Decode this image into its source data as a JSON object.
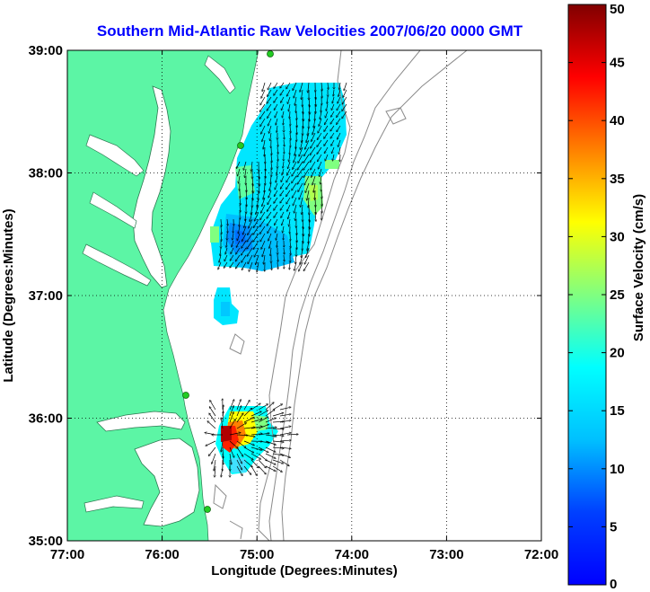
{
  "chart_data": {
    "type": "heatmap",
    "title": "Southern Mid-Atlantic Raw Velocities 2007/06/20 0000 GMT",
    "xlabel": "Longitude (Degrees:Minutes)",
    "ylabel": "Latitude (Degrees:Minutes)",
    "xlim": [
      -77,
      -72
    ],
    "ylim": [
      35,
      39
    ],
    "x_ticks": [
      {
        "value": -77,
        "label": "77:00"
      },
      {
        "value": -76,
        "label": "76:00"
      },
      {
        "value": -75,
        "label": "75:00"
      },
      {
        "value": -74,
        "label": "74:00"
      },
      {
        "value": -73,
        "label": "73:00"
      },
      {
        "value": -72,
        "label": "72:00"
      }
    ],
    "y_ticks": [
      {
        "value": 35,
        "label": "35:00"
      },
      {
        "value": 36,
        "label": "36:00"
      },
      {
        "value": 37,
        "label": "37:00"
      },
      {
        "value": 38,
        "label": "38:00"
      },
      {
        "value": 39,
        "label": "39:00"
      }
    ],
    "grid": true,
    "colorbar": {
      "label": "Surface Velocity (cm/s)",
      "min": 0,
      "max": 50,
      "ticks": [
        0,
        5,
        10,
        15,
        20,
        25,
        30,
        35,
        40,
        45,
        50
      ],
      "colormap": "jet"
    },
    "velocity_regions": [
      {
        "name": "northern patch",
        "lon_range": [
          -75.7,
          -74.3
        ],
        "lat_range": [
          37.2,
          38.8
        ],
        "speed_range_cm_s": [
          5,
          20
        ]
      },
      {
        "name": "small central patch",
        "lon_range": [
          -75.5,
          -75.3
        ],
        "lat_range": [
          36.7,
          37.1
        ],
        "speed_range_cm_s": [
          10,
          14
        ]
      },
      {
        "name": "southern patch",
        "lon_range": [
          -75.3,
          -74.7
        ],
        "lat_range": [
          35.5,
          36.1
        ],
        "speed_range_cm_s": [
          10,
          50
        ]
      }
    ]
  },
  "colors": {
    "land": "#5cf5a5",
    "title": "#0000ff",
    "text": "#000000",
    "bathymetry": "#8a8a8a",
    "site_marker": "#22cc22"
  }
}
